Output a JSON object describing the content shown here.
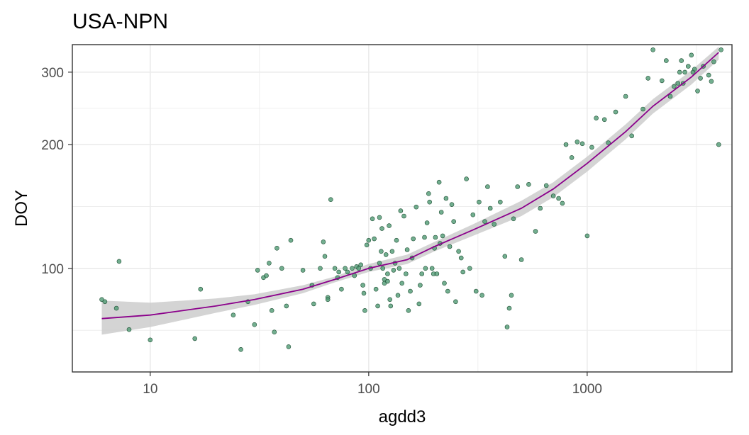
{
  "chart_data": {
    "type": "scatter",
    "title": "USA-NPN",
    "xlabel": "agdd3",
    "ylabel": "DOY",
    "x_scale": "log10",
    "y_scale": "log10",
    "xlim": [
      4.4,
      4600
    ],
    "ylim": [
      56,
      350
    ],
    "x_ticks": [
      {
        "value": 10,
        "label": "10"
      },
      {
        "value": 100,
        "label": "100"
      },
      {
        "value": 1000,
        "label": "1000"
      }
    ],
    "y_ticks": [
      {
        "value": 100,
        "label": "100"
      },
      {
        "value": 200,
        "label": "200"
      },
      {
        "value": 300,
        "label": "300"
      }
    ],
    "grid": true,
    "legend": "none",
    "colors": {
      "points_fill": "#4f9a73",
      "points_stroke": "#1f4f34",
      "smooth_line": "#8b008b",
      "confidence_band": "#c9c9c9",
      "panel_border": "#333333",
      "grid": "#ebebeb"
    },
    "series": [
      {
        "kind": "points",
        "points": [
          [
            6,
            84
          ],
          [
            6.2,
            83
          ],
          [
            7,
            80
          ],
          [
            7.2,
            104
          ],
          [
            8,
            71
          ],
          [
            10,
            67
          ],
          [
            16,
            67.5
          ],
          [
            17,
            89
          ],
          [
            24,
            77
          ],
          [
            26,
            63.5
          ],
          [
            28,
            83
          ],
          [
            30,
            73
          ],
          [
            31,
            99
          ],
          [
            33,
            95
          ],
          [
            34,
            96
          ],
          [
            35,
            103
          ],
          [
            36,
            79
          ],
          [
            37,
            70
          ],
          [
            38,
            112
          ],
          [
            40,
            100
          ],
          [
            42,
            81
          ],
          [
            43,
            64.5
          ],
          [
            44,
            117
          ],
          [
            50,
            99
          ],
          [
            55,
            91
          ],
          [
            56,
            82
          ],
          [
            60,
            100
          ],
          [
            62,
            116
          ],
          [
            63,
            107
          ],
          [
            65,
            85
          ],
          [
            65,
            84
          ],
          [
            67,
            147
          ],
          [
            70,
            100
          ],
          [
            72,
            95
          ],
          [
            73,
            98
          ],
          [
            75,
            89
          ],
          [
            78,
            100
          ],
          [
            80,
            98
          ],
          [
            84,
            100
          ],
          [
            86,
            96
          ],
          [
            88,
            101
          ],
          [
            90,
            100
          ],
          [
            92,
            102
          ],
          [
            94,
            91
          ],
          [
            95,
            87
          ],
          [
            96,
            79
          ],
          [
            98,
            114
          ],
          [
            100,
            117
          ],
          [
            102,
            100
          ],
          [
            104,
            132
          ],
          [
            106,
            118
          ],
          [
            108,
            89
          ],
          [
            110,
            81
          ],
          [
            112,
            133
          ],
          [
            112,
            103
          ],
          [
            114,
            110
          ],
          [
            115,
            125
          ],
          [
            116,
            100
          ],
          [
            118,
            94
          ],
          [
            118,
            92
          ],
          [
            120,
            108
          ],
          [
            122,
            97
          ],
          [
            122,
            93
          ],
          [
            124,
            127
          ],
          [
            125,
            84
          ],
          [
            126,
            81
          ],
          [
            128,
            110
          ],
          [
            130,
            99
          ],
          [
            132,
            103
          ],
          [
            134,
            117
          ],
          [
            136,
            86
          ],
          [
            138,
            100
          ],
          [
            140,
            138
          ],
          [
            142,
            92
          ],
          [
            145,
            134
          ],
          [
            148,
            97
          ],
          [
            150,
            111
          ],
          [
            152,
            79
          ],
          [
            155,
            88
          ],
          [
            158,
            106
          ],
          [
            160,
            118
          ],
          [
            165,
            141
          ],
          [
            170,
            82
          ],
          [
            172,
            91
          ],
          [
            175,
            97
          ],
          [
            180,
            119
          ],
          [
            182,
            100
          ],
          [
            185,
            129
          ],
          [
            188,
            152
          ],
          [
            190,
            145
          ],
          [
            195,
            100
          ],
          [
            198,
            97
          ],
          [
            200,
            112
          ],
          [
            202,
            119
          ],
          [
            205,
            97
          ],
          [
            210,
            162
          ],
          [
            212,
            115
          ],
          [
            215,
            137
          ],
          [
            218,
            120
          ],
          [
            222,
            92
          ],
          [
            226,
            148
          ],
          [
            230,
            88
          ],
          [
            235,
            113
          ],
          [
            240,
            143
          ],
          [
            245,
            130
          ],
          [
            250,
            83
          ],
          [
            258,
            110
          ],
          [
            265,
            106
          ],
          [
            270,
            98
          ],
          [
            280,
            165
          ],
          [
            290,
            100
          ],
          [
            300,
            135
          ],
          [
            310,
            88
          ],
          [
            320,
            145
          ],
          [
            330,
            86
          ],
          [
            340,
            130
          ],
          [
            350,
            158
          ],
          [
            360,
            140
          ],
          [
            375,
            128
          ],
          [
            400,
            145
          ],
          [
            420,
            107
          ],
          [
            430,
            72
          ],
          [
            440,
            80
          ],
          [
            450,
            86
          ],
          [
            460,
            132
          ],
          [
            480,
            158
          ],
          [
            500,
            105
          ],
          [
            540,
            160
          ],
          [
            580,
            123
          ],
          [
            610,
            140
          ],
          [
            650,
            159
          ],
          [
            700,
            150
          ],
          [
            740,
            148
          ],
          [
            770,
            144
          ],
          [
            800,
            200
          ],
          [
            850,
            186
          ],
          [
            900,
            203
          ],
          [
            950,
            201
          ],
          [
            1000,
            120
          ],
          [
            1050,
            197
          ],
          [
            1100,
            232
          ],
          [
            1200,
            230
          ],
          [
            1250,
            202
          ],
          [
            1350,
            240
          ],
          [
            1500,
            262
          ],
          [
            1600,
            210
          ],
          [
            1800,
            244
          ],
          [
            1900,
            290
          ],
          [
            2000,
            340
          ],
          [
            2200,
            286
          ],
          [
            2400,
            262
          ],
          [
            2500,
            277
          ],
          [
            2600,
            282
          ],
          [
            2700,
            320
          ],
          [
            2800,
            300
          ],
          [
            2900,
            310
          ],
          [
            3000,
            330
          ],
          [
            3100,
            305
          ],
          [
            3200,
            270
          ],
          [
            3300,
            290
          ],
          [
            3400,
            310
          ],
          [
            3600,
            295
          ],
          [
            3800,
            318
          ],
          [
            4000,
            200
          ],
          [
            4100,
            340
          ],
          [
            2300,
            320
          ],
          [
            2650,
            300
          ],
          [
            2750,
            282
          ],
          [
            3050,
            300
          ],
          [
            3700,
            285
          ]
        ]
      },
      {
        "kind": "smooth",
        "color": "#8b008b",
        "line": [
          [
            6,
            75.5
          ],
          [
            10,
            77
          ],
          [
            20,
            81
          ],
          [
            30,
            84
          ],
          [
            50,
            89
          ],
          [
            70,
            94
          ],
          [
            100,
            100
          ],
          [
            150,
            105
          ],
          [
            200,
            113
          ],
          [
            300,
            124
          ],
          [
            500,
            140
          ],
          [
            700,
            156
          ],
          [
            1000,
            180
          ],
          [
            1500,
            215
          ],
          [
            2000,
            248
          ],
          [
            3000,
            292
          ],
          [
            4000,
            335
          ]
        ],
        "band_upper": [
          [
            6,
            83.5
          ],
          [
            10,
            82.5
          ],
          [
            20,
            84.5
          ],
          [
            30,
            86.5
          ],
          [
            50,
            91
          ],
          [
            70,
            95.5
          ],
          [
            100,
            102.5
          ],
          [
            150,
            108
          ],
          [
            200,
            116
          ],
          [
            300,
            128
          ],
          [
            500,
            146
          ],
          [
            700,
            162
          ],
          [
            1000,
            187
          ],
          [
            1500,
            224
          ],
          [
            2000,
            258
          ],
          [
            3000,
            303
          ],
          [
            4000,
            346
          ]
        ],
        "band_lower": [
          [
            6,
            69
          ],
          [
            10,
            72
          ],
          [
            20,
            78
          ],
          [
            30,
            81.5
          ],
          [
            50,
            87
          ],
          [
            70,
            92.5
          ],
          [
            100,
            98
          ],
          [
            150,
            102.5
          ],
          [
            200,
            110
          ],
          [
            300,
            120
          ],
          [
            500,
            134
          ],
          [
            700,
            149
          ],
          [
            1000,
            172
          ],
          [
            1500,
            206
          ],
          [
            2000,
            238
          ],
          [
            3000,
            280
          ],
          [
            4000,
            322
          ]
        ]
      }
    ]
  }
}
